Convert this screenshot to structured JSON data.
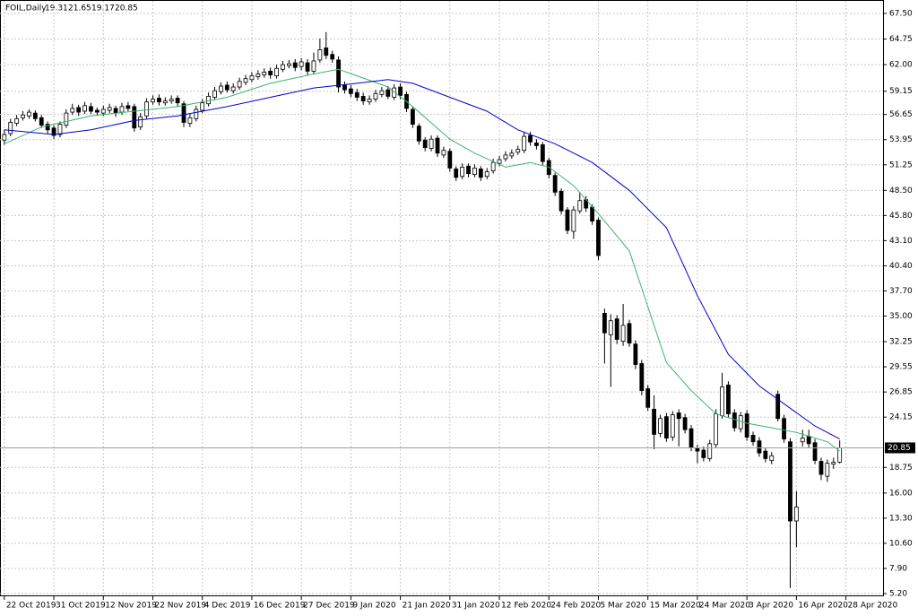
{
  "chart_data": {
    "type": "candlestick",
    "title": "FOIL,Daily",
    "open": [
      53.9,
      54.6,
      55.7,
      56.3,
      56.5,
      56.8,
      56.3,
      55.6,
      55.2,
      54.5,
      55.5,
      56.9,
      57.4,
      57.0,
      57.5,
      57.1,
      56.8,
      57.1,
      57.3,
      56.9,
      57.6,
      57.5,
      55.3,
      56.5,
      58.0,
      58.4,
      57.9,
      58.1,
      58.4,
      57.8,
      55.7,
      56.2,
      57.1,
      57.8,
      58.5,
      59.1,
      59.8,
      59.2,
      59.6,
      60.1,
      60.4,
      60.7,
      60.9,
      61.3,
      60.8,
      61.5,
      61.9,
      62.2,
      61.8,
      62.2,
      61.3,
      62.5,
      63.8,
      63.1,
      62.5,
      59.8,
      59.4,
      59.0,
      58.6,
      58.0,
      58.3,
      58.8,
      59.3,
      58.5,
      59.6,
      58.8,
      57.2,
      55.4,
      53.9,
      53.0,
      54.1,
      52.3,
      52.7,
      50.8,
      50.0,
      51.1,
      50.2,
      50.8,
      50.0,
      50.6,
      51.4,
      51.9,
      52.2,
      52.6,
      52.8,
      54.4,
      53.6,
      53.4,
      51.7,
      50.1,
      48.4,
      46.4,
      44.1,
      46.3,
      47.5,
      46.7,
      45.3,
      35.3,
      33.0,
      34.7,
      32.3,
      34.2,
      32.0,
      29.9,
      27.2,
      25.0,
      22.4,
      24.2,
      22.0,
      24.6,
      24.1,
      22.9,
      20.8,
      20.6,
      19.7,
      21.2,
      24.3,
      27.6,
      24.6,
      22.9,
      24.5,
      22.2,
      21.6,
      20.5,
      19.5,
      26.6,
      24.0,
      21.5,
      13.0,
      21.5,
      22.1,
      21.4,
      19.4,
      17.8,
      19.1,
      19.31
    ],
    "high": [
      55.0,
      56.2,
      56.6,
      57.0,
      57.2,
      57.1,
      56.6,
      55.9,
      55.5,
      55.9,
      57.2,
      57.8,
      57.7,
      58.0,
      57.9,
      57.4,
      57.6,
      57.8,
      57.6,
      57.9,
      58.0,
      57.8,
      56.8,
      58.4,
      58.7,
      58.8,
      58.5,
      58.7,
      58.7,
      58.1,
      56.7,
      57.6,
      58.3,
      59.0,
      59.6,
      60.1,
      60.2,
      60.0,
      60.6,
      60.9,
      61.2,
      61.4,
      61.6,
      61.7,
      62.0,
      62.4,
      62.5,
      62.6,
      62.7,
      62.6,
      63.3,
      64.8,
      65.5,
      63.5,
      62.9,
      60.2,
      59.8,
      59.4,
      59.0,
      58.7,
      59.3,
      59.6,
      59.7,
      59.9,
      60.0,
      59.1,
      57.5,
      55.7,
      54.2,
      54.4,
      54.4,
      53.2,
      53.0,
      51.1,
      51.4,
      51.4,
      51.3,
      51.1,
      50.9,
      51.9,
      52.2,
      52.7,
      52.9,
      53.3,
      54.8,
      54.8,
      54.0,
      53.7,
      52.0,
      50.4,
      48.7,
      46.7,
      46.8,
      48.3,
      47.9,
      47.0,
      45.6,
      35.8,
      35.2,
      35.1,
      36.3,
      34.6,
      32.4,
      30.3,
      27.6,
      26.5,
      24.4,
      24.6,
      24.8,
      25.0,
      24.5,
      23.3,
      21.2,
      21.0,
      21.7,
      25.0,
      28.9,
      28.0,
      25.0,
      24.7,
      24.9,
      22.6,
      22.0,
      20.9,
      20.4,
      27.0,
      24.4,
      21.9,
      16.2,
      22.8,
      22.8,
      21.8,
      19.8,
      19.6,
      19.8,
      21.65
    ],
    "low": [
      53.4,
      54.3,
      55.4,
      56.0,
      56.2,
      55.9,
      55.2,
      54.6,
      54.0,
      54.2,
      55.2,
      56.6,
      56.5,
      56.7,
      56.7,
      56.5,
      56.5,
      56.8,
      56.4,
      56.6,
      57.0,
      54.8,
      55.0,
      56.2,
      57.7,
      57.6,
      57.6,
      57.8,
      57.5,
      55.3,
      55.3,
      55.9,
      56.8,
      57.5,
      58.2,
      58.8,
      59.0,
      58.9,
      59.3,
      59.8,
      60.1,
      60.4,
      60.6,
      60.5,
      60.5,
      61.2,
      61.6,
      61.3,
      61.4,
      60.9,
      61.0,
      62.2,
      62.6,
      62.2,
      59.0,
      58.9,
      58.5,
      58.1,
      57.7,
      57.7,
      58.0,
      58.5,
      58.3,
      58.2,
      58.3,
      56.9,
      55.2,
      53.4,
      52.7,
      52.7,
      52.1,
      52.0,
      50.5,
      49.5,
      49.7,
      49.9,
      49.9,
      49.5,
      49.7,
      50.3,
      51.1,
      51.6,
      51.9,
      52.3,
      52.5,
      53.3,
      52.9,
      51.2,
      49.8,
      47.9,
      45.9,
      43.8,
      43.3,
      46.0,
      46.2,
      44.8,
      41.0,
      29.9,
      27.4,
      32.0,
      31.8,
      31.7,
      29.3,
      26.5,
      24.8,
      20.7,
      22.0,
      21.5,
      21.6,
      21.0,
      22.4,
      20.5,
      19.2,
      19.4,
      19.4,
      20.9,
      24.0,
      24.1,
      22.6,
      22.5,
      21.6,
      21.1,
      19.9,
      19.3,
      19.1,
      23.7,
      21.4,
      5.8,
      10.2,
      21.0,
      20.9,
      19.1,
      17.4,
      17.2,
      18.6,
      19.17
    ],
    "close": [
      54.5,
      55.8,
      56.2,
      56.6,
      56.9,
      56.2,
      55.5,
      55.0,
      54.4,
      55.6,
      56.8,
      57.3,
      56.9,
      57.6,
      57.0,
      56.9,
      57.2,
      57.4,
      56.8,
      57.5,
      57.3,
      55.2,
      56.4,
      58.0,
      58.3,
      58.0,
      58.1,
      58.3,
      57.9,
      55.8,
      56.3,
      57.2,
      57.9,
      58.6,
      59.2,
      59.7,
      59.3,
      59.6,
      60.2,
      60.5,
      60.8,
      61.0,
      61.2,
      60.9,
      61.6,
      62.0,
      62.1,
      61.7,
      62.3,
      61.3,
      62.4,
      63.6,
      63.0,
      62.6,
      59.6,
      59.3,
      58.9,
      58.5,
      58.1,
      58.3,
      58.9,
      59.2,
      58.6,
      59.5,
      58.7,
      57.3,
      55.6,
      53.8,
      53.1,
      54.0,
      52.5,
      52.8,
      50.9,
      49.9,
      51.0,
      50.3,
      50.9,
      49.9,
      50.5,
      51.5,
      51.8,
      52.3,
      52.5,
      52.9,
      54.3,
      53.7,
      53.3,
      51.6,
      50.2,
      48.3,
      46.3,
      44.2,
      46.4,
      47.4,
      46.6,
      45.2,
      41.5,
      33.2,
      34.5,
      32.5,
      34.0,
      32.1,
      29.8,
      27.0,
      25.2,
      22.3,
      24.0,
      21.9,
      24.4,
      24.0,
      22.8,
      20.9,
      20.5,
      19.8,
      21.3,
      24.5,
      27.4,
      24.5,
      23.0,
      24.3,
      22.0,
      21.5,
      20.3,
      19.7,
      20.0,
      24.0,
      21.8,
      13.0,
      14.5,
      21.9,
      21.3,
      19.5,
      18.0,
      19.2,
      19.3,
      20.85
    ],
    "series": [
      {
        "color": "#3cb371",
        "x": [
          0,
          6,
          14,
          21,
          28,
          36,
          43,
          50,
          54,
          57,
          62,
          66,
          72,
          76,
          81,
          85,
          88,
          92,
          96,
          101,
          104,
          107,
          111,
          115,
          120,
          124,
          128,
          133,
          135
        ],
        "values": [
          53.5,
          55.3,
          56.5,
          57.0,
          57.5,
          58.5,
          60.0,
          61.0,
          61.5,
          60.8,
          59.6,
          57.5,
          54.0,
          52.5,
          51.0,
          51.5,
          51.0,
          49.0,
          46.0,
          42.0,
          36.0,
          30.0,
          27.0,
          24.5,
          23.5,
          23.0,
          22.5,
          21.5,
          20.5
        ]
      },
      {
        "color": "#0000cd",
        "x": [
          0,
          8,
          14,
          21,
          28,
          36,
          43,
          50,
          57,
          62,
          66,
          72,
          78,
          83,
          89,
          95,
          101,
          107,
          112,
          117,
          122,
          127,
          131,
          135
        ],
        "values": [
          55.0,
          54.5,
          55.0,
          56.0,
          56.5,
          57.5,
          58.5,
          59.5,
          60.0,
          60.4,
          60.0,
          58.5,
          57.0,
          55.0,
          53.5,
          51.5,
          48.5,
          44.5,
          37.2,
          30.9,
          27.5,
          25.1,
          23.2,
          21.8
        ]
      }
    ],
    "xlim": [
      -0.7,
      142
    ],
    "xticks": [
      {
        "value": 0,
        "label": "22 Oct 2019"
      },
      {
        "value": 8,
        "label": "31 Oct 2019"
      },
      {
        "value": 16,
        "label": "12 Nov 2019"
      },
      {
        "value": 24,
        "label": "22 Nov 2019"
      },
      {
        "value": 32,
        "label": "4 Dec 2019"
      },
      {
        "value": 40,
        "label": "16 Dec 2019"
      },
      {
        "value": 48,
        "label": "27 Dec 2019"
      },
      {
        "value": 56,
        "label": "9 Jan 2020"
      },
      {
        "value": 64,
        "label": "21 Jan 2020"
      },
      {
        "value": 72,
        "label": "31 Jan 2020"
      },
      {
        "value": 80,
        "label": "12 Feb 2020"
      },
      {
        "value": 88,
        "label": "24 Feb 2020"
      },
      {
        "value": 96,
        "label": "5 Mar 2020"
      },
      {
        "value": 104,
        "label": "15 Mar 2020"
      },
      {
        "value": 112,
        "label": "24 Mar 2020"
      },
      {
        "value": 120,
        "label": "3 Apr 2020"
      },
      {
        "value": 128,
        "label": "16 Apr 2020"
      },
      {
        "value": 136,
        "label": "28 Apr 2020"
      }
    ],
    "ylim": [
      5.2,
      67.5
    ],
    "yticks": [
      {
        "value": 67.5,
        "label": "67.50"
      },
      {
        "value": 64.75,
        "label": "64.75"
      },
      {
        "value": 62,
        "label": "62.00"
      },
      {
        "value": 59.15,
        "label": "59.15"
      },
      {
        "value": 56.65,
        "label": "56.65"
      },
      {
        "value": 53.95,
        "label": "53.95"
      },
      {
        "value": 51.25,
        "label": "51.25"
      },
      {
        "value": 48.5,
        "label": "48.50"
      },
      {
        "value": 45.8,
        "label": "45.80"
      },
      {
        "value": 43.1,
        "label": "43.10"
      },
      {
        "value": 40.4,
        "label": "40.40"
      },
      {
        "value": 37.7,
        "label": "37.70"
      },
      {
        "value": 35,
        "label": "35.00"
      },
      {
        "value": 32.25,
        "label": "32.25"
      },
      {
        "value": 29.55,
        "label": "29.55"
      },
      {
        "value": 26.85,
        "label": "26.85"
      },
      {
        "value": 24.15,
        "label": "24.15"
      },
      {
        "value": 18.75,
        "label": "18.75"
      },
      {
        "value": 16,
        "label": "16.00"
      },
      {
        "value": 13.3,
        "label": "13.30"
      },
      {
        "value": 10.6,
        "label": "10.60"
      },
      {
        "value": 7.9,
        "label": "7.90"
      },
      {
        "value": 5.2,
        "label": "5.20"
      }
    ],
    "grid": true
  }
}
